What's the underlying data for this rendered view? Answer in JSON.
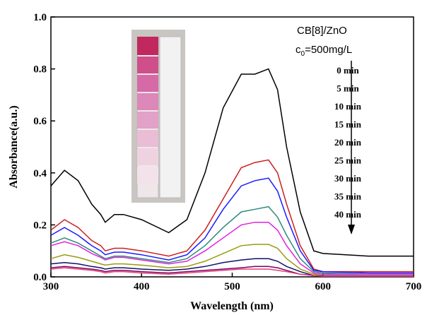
{
  "chart_data": {
    "type": "line",
    "x_label": "Wavelength (nm)",
    "y_label": "Absorbance(a.u.)",
    "annotations": {
      "sample": "CB[8]/ZnO",
      "conc_symbol": "c",
      "conc_subscript": "0",
      "conc_value": "=500mg/L"
    },
    "x": [
      300,
      315,
      330,
      345,
      355,
      360,
      370,
      380,
      400,
      430,
      450,
      470,
      490,
      510,
      525,
      540,
      550,
      560,
      575,
      590,
      600,
      650,
      700
    ],
    "series": [
      {
        "name": "0 min",
        "color": "#000000",
        "values": [
          0.35,
          0.41,
          0.37,
          0.28,
          0.24,
          0.21,
          0.24,
          0.24,
          0.22,
          0.17,
          0.22,
          0.4,
          0.65,
          0.78,
          0.78,
          0.8,
          0.72,
          0.5,
          0.25,
          0.1,
          0.09,
          0.08,
          0.08
        ]
      },
      {
        "name": "5 min",
        "color": "#cc1f1f",
        "values": [
          0.18,
          0.22,
          0.19,
          0.14,
          0.12,
          0.1,
          0.11,
          0.11,
          0.1,
          0.08,
          0.1,
          0.18,
          0.3,
          0.42,
          0.44,
          0.45,
          0.4,
          0.28,
          0.12,
          0.03,
          0.02,
          0.02,
          0.02
        ]
      },
      {
        "name": "10 min",
        "color": "#1a1aff",
        "values": [
          0.16,
          0.19,
          0.16,
          0.12,
          0.1,
          0.085,
          0.095,
          0.095,
          0.085,
          0.065,
          0.085,
          0.15,
          0.26,
          0.35,
          0.37,
          0.38,
          0.33,
          0.23,
          0.1,
          0.025,
          0.02,
          0.015,
          0.015
        ]
      },
      {
        "name": "15 min",
        "color": "#2e8b7a",
        "values": [
          0.13,
          0.15,
          0.13,
          0.1,
          0.08,
          0.07,
          0.08,
          0.08,
          0.07,
          0.055,
          0.07,
          0.12,
          0.19,
          0.25,
          0.26,
          0.27,
          0.23,
          0.16,
          0.07,
          0.02,
          0.015,
          0.01,
          0.01
        ]
      },
      {
        "name": "20 min",
        "color": "#e020e0",
        "values": [
          0.12,
          0.135,
          0.12,
          0.09,
          0.075,
          0.065,
          0.075,
          0.075,
          0.065,
          0.05,
          0.06,
          0.1,
          0.15,
          0.2,
          0.21,
          0.21,
          0.18,
          0.12,
          0.05,
          0.015,
          0.01,
          0.01,
          0.01
        ]
      },
      {
        "name": "25 min",
        "color": "#9a9a10",
        "values": [
          0.07,
          0.085,
          0.075,
          0.06,
          0.05,
          0.045,
          0.05,
          0.05,
          0.045,
          0.035,
          0.04,
          0.06,
          0.09,
          0.12,
          0.125,
          0.125,
          0.11,
          0.07,
          0.03,
          0.01,
          0.005,
          0.005,
          0.005
        ]
      },
      {
        "name": "30 min",
        "color": "#10106a",
        "values": [
          0.05,
          0.055,
          0.05,
          0.04,
          0.035,
          0.03,
          0.035,
          0.035,
          0.03,
          0.025,
          0.03,
          0.04,
          0.055,
          0.065,
          0.07,
          0.07,
          0.06,
          0.04,
          0.02,
          0.005,
          0.004,
          0.004,
          0.004
        ]
      },
      {
        "name": "35 min",
        "color": "#800060",
        "values": [
          0.035,
          0.04,
          0.035,
          0.03,
          0.025,
          0.02,
          0.025,
          0.025,
          0.02,
          0.015,
          0.02,
          0.025,
          0.03,
          0.035,
          0.04,
          0.04,
          0.035,
          0.025,
          0.01,
          0.005,
          0.003,
          0.003,
          0.003
        ]
      },
      {
        "name": "40 min",
        "color": "#e0407a",
        "values": [
          0.03,
          0.035,
          0.03,
          0.025,
          0.02,
          0.015,
          0.02,
          0.02,
          0.015,
          0.01,
          0.015,
          0.02,
          0.025,
          0.03,
          0.03,
          0.03,
          0.025,
          0.02,
          0.01,
          0.005,
          0.002,
          0.002,
          0.002
        ]
      }
    ],
    "xlim": [
      300,
      700
    ],
    "xticks": [
      300,
      400,
      500,
      600,
      700
    ],
    "ylim": [
      0,
      1
    ],
    "yticks": [
      {
        "value": 0,
        "label": "0.0"
      },
      0.2,
      0.4,
      0.6,
      0.8,
      {
        "value": 1,
        "label": "1.0"
      }
    ],
    "grid": false
  }
}
